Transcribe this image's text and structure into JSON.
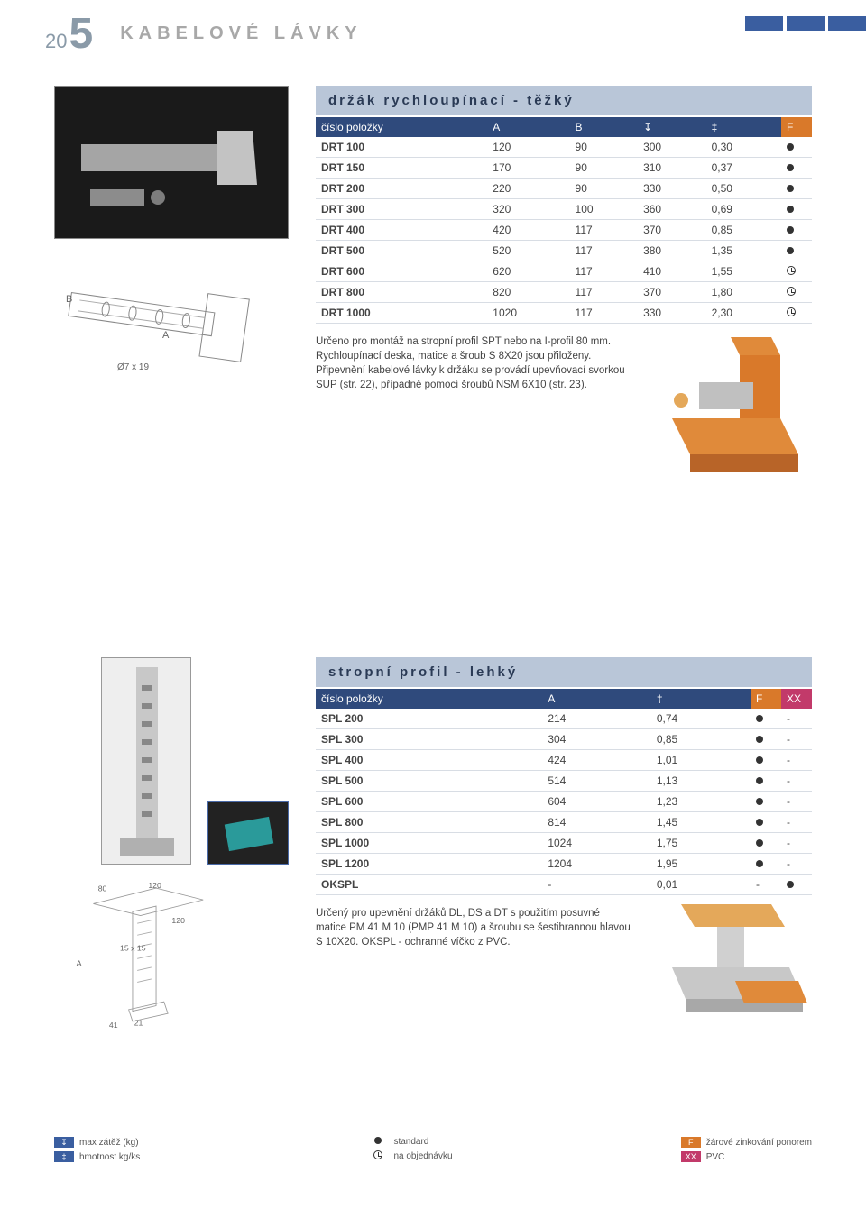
{
  "page_number_prefix": "20",
  "page_number_big": "5",
  "category": "KABELOVÉ LÁVKY",
  "header_bar_color": "#3a5ea0",
  "section1": {
    "title": "držák rychloupínací - těžký",
    "columns": [
      "číslo položky",
      "A",
      "B",
      "↧",
      "‡",
      "F"
    ],
    "rows": [
      {
        "name": "DRT 100",
        "A": "120",
        "B": "90",
        "c": "300",
        "d": "0,30",
        "f": "dot"
      },
      {
        "name": "DRT 150",
        "A": "170",
        "B": "90",
        "c": "310",
        "d": "0,37",
        "f": "dot"
      },
      {
        "name": "DRT 200",
        "A": "220",
        "B": "90",
        "c": "330",
        "d": "0,50",
        "f": "dot"
      },
      {
        "name": "DRT 300",
        "A": "320",
        "B": "100",
        "c": "360",
        "d": "0,69",
        "f": "dot"
      },
      {
        "name": "DRT 400",
        "A": "420",
        "B": "117",
        "c": "370",
        "d": "0,85",
        "f": "dot"
      },
      {
        "name": "DRT 500",
        "A": "520",
        "B": "117",
        "c": "380",
        "d": "1,35",
        "f": "dot"
      },
      {
        "name": "DRT 600",
        "A": "620",
        "B": "117",
        "c": "410",
        "d": "1,55",
        "f": "clock"
      },
      {
        "name": "DRT 800",
        "A": "820",
        "B": "117",
        "c": "370",
        "d": "1,80",
        "f": "clock"
      },
      {
        "name": "DRT 1000",
        "A": "1020",
        "B": "117",
        "c": "330",
        "d": "2,30",
        "f": "clock"
      }
    ],
    "description": "Určeno pro montáž na stropní profil SPT nebo na I-profil 80 mm.\nRychloupínací deska, matice a šroub S 8X20 jsou přiloženy.\nPřipevnění kabelové lávky k držáku se provádí upevňovací svorkou SUP (str. 22), případně pomocí šroubů NSM 6X10 (str. 23).",
    "diagram_labels": {
      "A": "A",
      "B": "B",
      "slot": "Ø7 x 19"
    }
  },
  "section2": {
    "title": "stropní profil - lehký",
    "columns": [
      "číslo položky",
      "A",
      "‡",
      "F",
      "XX"
    ],
    "rows": [
      {
        "name": "SPL 200",
        "A": "214",
        "d": "0,74",
        "f": "dot",
        "xx": "-"
      },
      {
        "name": "SPL 300",
        "A": "304",
        "d": "0,85",
        "f": "dot",
        "xx": "-"
      },
      {
        "name": "SPL 400",
        "A": "424",
        "d": "1,01",
        "f": "dot",
        "xx": "-"
      },
      {
        "name": "SPL 500",
        "A": "514",
        "d": "1,13",
        "f": "dot",
        "xx": "-"
      },
      {
        "name": "SPL 600",
        "A": "604",
        "d": "1,23",
        "f": "dot",
        "xx": "-"
      },
      {
        "name": "SPL 800",
        "A": "814",
        "d": "1,45",
        "f": "dot",
        "xx": "-"
      },
      {
        "name": "SPL 1000",
        "A": "1024",
        "d": "1,75",
        "f": "dot",
        "xx": "-"
      },
      {
        "name": "SPL 1200",
        "A": "1204",
        "d": "1,95",
        "f": "dot",
        "xx": "-"
      },
      {
        "name": "OKSPL",
        "A": "-",
        "d": "0,01",
        "f": "-",
        "xx": "dot"
      }
    ],
    "description": "Určený pro upevnění držáků DL, DS a DT s použitím posuvné matice PM 41 M 10 (PMP 41 M 10) a šroubu se šestihrannou hlavou S 10X20. OKSPL - ochranné víčko z PVC.",
    "diagram_labels": {
      "top1": "80",
      "top2": "120",
      "top3": "120",
      "A": "A",
      "slot": "15 x 15",
      "foot1": "41",
      "foot2": "21"
    }
  },
  "legend": {
    "left": [
      {
        "badge": "↧",
        "color": "blue",
        "text": "max zátěž (kg)"
      },
      {
        "badge": "‡",
        "color": "blue",
        "text": "hmotnost kg/ks"
      }
    ],
    "mid": [
      {
        "sym": "dot",
        "text": "standard"
      },
      {
        "sym": "clock",
        "text": "na objednávku"
      }
    ],
    "right": [
      {
        "badge": "F",
        "color": "orange",
        "text": "žárové zinkování ponorem"
      },
      {
        "badge": "XX",
        "color": "mag",
        "text": "PVC"
      }
    ]
  },
  "colors": {
    "header_blue": "#2f4a7c",
    "title_bg": "#b9c6d8",
    "orange": "#d9792a",
    "magenta": "#c23a6a"
  }
}
